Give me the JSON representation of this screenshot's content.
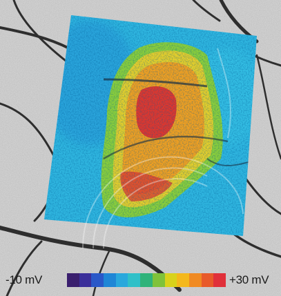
{
  "colorbar": {
    "min_label": "-10 mV",
    "max_label": "+30 mV",
    "min_value": -10,
    "max_value": 30,
    "unit": "mV",
    "colors": [
      "#3a1f6e",
      "#3b2f9a",
      "#2a58c8",
      "#1f86d6",
      "#2aa8dc",
      "#30c0c8",
      "#2fb37a",
      "#7fc23a",
      "#d9d21b",
      "#f4b81c",
      "#f08a22",
      "#e85a2a",
      "#e0303a"
    ]
  },
  "palette": {
    "background_gray": "#d8d8d8",
    "crack_dark": "#2e2e2e",
    "map_blue": "#2fb6e0",
    "map_green": "#8bcf3a",
    "map_yellow": "#e6cf2a",
    "map_orange": "#f2a020",
    "map_red": "#e0362d"
  }
}
